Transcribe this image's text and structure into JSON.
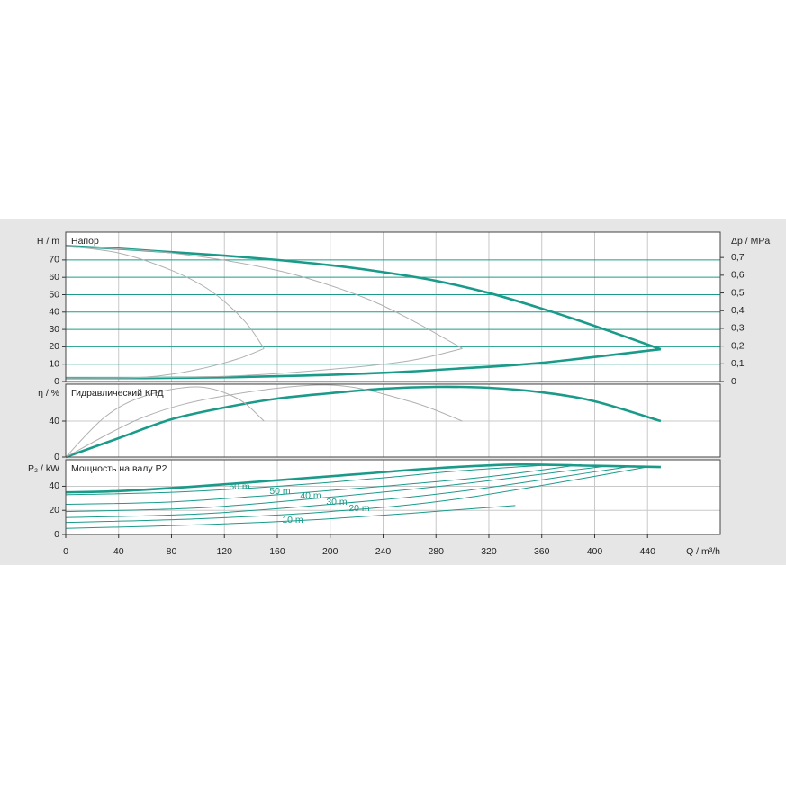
{
  "chart_data": [
    {
      "type": "line",
      "title": "Напор",
      "ylabel": "H / m",
      "y2label": "Δp / MPa",
      "xlim": [
        0,
        495
      ],
      "ylim": [
        0,
        86
      ],
      "yticks": [
        0,
        10,
        20,
        30,
        40,
        50,
        60,
        70
      ],
      "y2lim": [
        0,
        0.843
      ],
      "y2ticks": [
        0,
        {
          "value": 0.1,
          "label": "0,1"
        },
        {
          "value": 0.2,
          "label": "0,2"
        },
        {
          "value": 0.3,
          "label": "0,3"
        },
        {
          "value": 0.4,
          "label": "0,4"
        },
        {
          "value": 0.5,
          "label": "0,5"
        },
        {
          "value": 0.6,
          "label": "0,6"
        },
        {
          "value": 0.7,
          "label": "0,7"
        }
      ],
      "grid": true,
      "grid_color": "#1a9b8a",
      "series": [
        {
          "color": "#1a9b8a",
          "style": "bold",
          "x": [
            0,
            40,
            80,
            120,
            160,
            200,
            240,
            280,
            320,
            360,
            400,
            450
          ],
          "values": [
            78,
            76.5,
            74.5,
            72.5,
            70,
            67,
            63,
            58,
            51,
            42,
            32,
            18.6
          ]
        },
        {
          "color": "#1a9b8a",
          "style": "bold",
          "x": [
            0,
            60,
            120,
            180,
            240,
            300,
            360,
            450
          ],
          "values": [
            2,
            2,
            2.4,
            3.4,
            5,
            7.6,
            10.8,
            18.6
          ]
        },
        {
          "color": "#b0b0b0",
          "style": "thin",
          "x": [
            0,
            40,
            80,
            110,
            135,
            150
          ],
          "values": [
            78,
            74,
            64,
            52,
            35,
            19
          ]
        },
        {
          "color": "#b0b0b0",
          "style": "thin",
          "x": [
            0,
            60,
            100,
            130,
            150
          ],
          "values": [
            2,
            2.5,
            7,
            13,
            19
          ]
        },
        {
          "color": "#b0b0b0",
          "style": "thin",
          "x": [
            0,
            80,
            160,
            220,
            260,
            300
          ],
          "values": [
            78,
            74,
            64,
            50,
            36,
            19
          ]
        },
        {
          "color": "#b0b0b0",
          "style": "thin",
          "x": [
            0,
            120,
            200,
            260,
            300
          ],
          "values": [
            2,
            3,
            7,
            12,
            19
          ]
        }
      ]
    },
    {
      "type": "line",
      "title": "Гидравлический КПД",
      "ylabel": "η / %",
      "xlim": [
        0,
        495
      ],
      "ylim": [
        0,
        81
      ],
      "yticks": [
        0,
        40
      ],
      "grid": true,
      "grid_color": "#c8c8c8",
      "series": [
        {
          "color": "#1a9b8a",
          "style": "bold",
          "x": [
            0,
            40,
            80,
            120,
            160,
            200,
            240,
            280,
            320,
            360,
            400,
            450
          ],
          "values": [
            0,
            21,
            42,
            55,
            65,
            71,
            76,
            78,
            77,
            72,
            62,
            40
          ]
        },
        {
          "color": "#b0b0b0",
          "style": "thin",
          "x": [
            0,
            30,
            60,
            100,
            130,
            150
          ],
          "values": [
            0,
            45,
            68,
            78,
            65,
            40
          ]
        },
        {
          "color": "#b0b0b0",
          "style": "thin",
          "x": [
            0,
            60,
            120,
            200,
            260,
            300
          ],
          "values": [
            0,
            45,
            68,
            80,
            62,
            40
          ]
        }
      ]
    },
    {
      "type": "line",
      "title": "Мощность на валу P2",
      "ylabel": "P₂ / kW",
      "xlabel": "Q / m³/h",
      "xlim": [
        0,
        495
      ],
      "xticks": [
        0,
        40,
        80,
        120,
        160,
        200,
        240,
        280,
        320,
        360,
        400,
        440
      ],
      "ylim": [
        0,
        62
      ],
      "yticks": [
        0,
        20,
        40
      ],
      "grid": true,
      "grid_color": "#c8c8c8",
      "series": [
        {
          "color": "#1a9b8a",
          "style": "bold",
          "x": [
            0,
            40,
            100,
            160,
            220,
            280,
            340,
            400,
            450
          ],
          "values": [
            35,
            36,
            40,
            45,
            50,
            55,
            58,
            57,
            56
          ]
        },
        {
          "name": "60 m",
          "color": "#1a9b8a",
          "style": "thin",
          "x": [
            0,
            80,
            160,
            240,
            300,
            370
          ],
          "values": [
            33,
            35,
            40,
            47,
            53,
            58
          ]
        },
        {
          "name": "50 m",
          "color": "#1a9b8a",
          "style": "thin",
          "x": [
            0,
            80,
            160,
            240,
            320,
            390
          ],
          "values": [
            25,
            27,
            33,
            40,
            48,
            58
          ]
        },
        {
          "name": "40 m",
          "color": "#1a9b8a",
          "style": "thin",
          "x": [
            0,
            100,
            200,
            300,
            410
          ],
          "values": [
            19,
            22,
            31,
            42,
            57
          ]
        },
        {
          "name": "30 m",
          "color": "#1a9b8a",
          "style": "thin",
          "x": [
            0,
            100,
            200,
            300,
            430
          ],
          "values": [
            14,
            17,
            25,
            36,
            57
          ]
        },
        {
          "name": "20 m",
          "color": "#1a9b8a",
          "style": "thin",
          "x": [
            0,
            100,
            200,
            300,
            440
          ],
          "values": [
            10,
            13,
            19,
            30,
            56
          ]
        },
        {
          "name": "10 m",
          "color": "#1a9b8a",
          "style": "thin",
          "x": [
            0,
            100,
            200,
            340
          ],
          "values": [
            5,
            8,
            13,
            24
          ]
        }
      ]
    }
  ]
}
